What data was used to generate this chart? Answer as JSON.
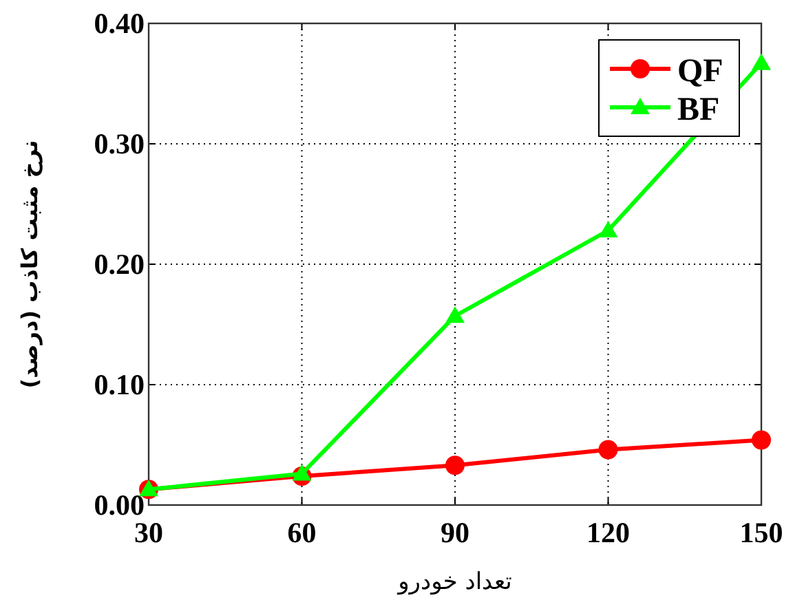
{
  "chart_data": {
    "type": "line",
    "xlabel": "تعداد خودرو",
    "ylabel": "نرخ مثبت کاذب (درصد)",
    "x": [
      30,
      60,
      90,
      120,
      150
    ],
    "series": [
      {
        "name": "QF",
        "color": "#ff0000",
        "marker": "circle",
        "values": [
          0.013,
          0.024,
          0.033,
          0.046,
          0.054
        ]
      },
      {
        "name": "BF",
        "color": "#00ff00",
        "marker": "triangle",
        "values": [
          0.013,
          0.026,
          0.157,
          0.228,
          0.367
        ]
      }
    ],
    "xlim": [
      30,
      150
    ],
    "xticks": [
      30,
      60,
      90,
      120,
      150
    ],
    "ylim": [
      0,
      0.4
    ],
    "yticks": [
      {
        "value": 0,
        "label": "0.00"
      },
      {
        "value": 0.1,
        "label": "0.10"
      },
      {
        "value": 0.2,
        "label": "0.20"
      },
      {
        "value": 0.3,
        "label": "0.30"
      },
      {
        "value": 0.4,
        "label": "0.40"
      }
    ],
    "grid": true,
    "legend": "top right",
    "line_style": "solid"
  }
}
